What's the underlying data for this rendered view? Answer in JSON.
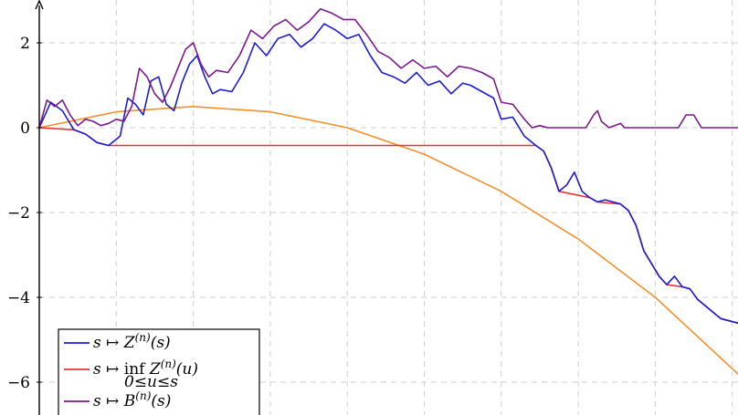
{
  "chart_data": {
    "type": "line",
    "title": "",
    "xlabel": "",
    "ylabel": "",
    "xlim": [
      0,
      9.1
    ],
    "ylim": [
      -6.7,
      2.9
    ],
    "x_gridlines": [
      0,
      1,
      2,
      3,
      4,
      5,
      6,
      7,
      8,
      9
    ],
    "y_ticks": [
      2,
      0,
      -2,
      -4,
      -6
    ],
    "y_tick_labels": [
      "2",
      "0",
      "−2",
      "−4",
      "−6"
    ],
    "grid": true,
    "legend_position": "bottom-left",
    "series": [
      {
        "name": "s ↦ Z(n)(s)",
        "legend_parts": {
          "prefix": "s ↦ Z",
          "sup": "(n)",
          "suffix": "(s)"
        },
        "color": "#1c1cd6",
        "points": [
          [
            0,
            0
          ],
          [
            0.15,
            0.6
          ],
          [
            0.3,
            0.4
          ],
          [
            0.45,
            -0.05
          ],
          [
            0.6,
            -0.15
          ],
          [
            0.75,
            -0.35
          ],
          [
            0.9,
            -0.42
          ],
          [
            1.05,
            -0.2
          ],
          [
            1.15,
            0.7
          ],
          [
            1.25,
            0.55
          ],
          [
            1.35,
            0.3
          ],
          [
            1.45,
            1.1
          ],
          [
            1.55,
            1.2
          ],
          [
            1.65,
            0.55
          ],
          [
            1.75,
            0.4
          ],
          [
            1.85,
            1.05
          ],
          [
            1.95,
            1.5
          ],
          [
            2.05,
            1.7
          ],
          [
            2.15,
            1.2
          ],
          [
            2.25,
            0.8
          ],
          [
            2.35,
            0.9
          ],
          [
            2.5,
            0.85
          ],
          [
            2.65,
            1.3
          ],
          [
            2.8,
            2.0
          ],
          [
            2.95,
            1.7
          ],
          [
            3.1,
            2.1
          ],
          [
            3.25,
            2.2
          ],
          [
            3.4,
            1.9
          ],
          [
            3.55,
            2.1
          ],
          [
            3.7,
            2.45
          ],
          [
            3.85,
            2.3
          ],
          [
            4.0,
            2.1
          ],
          [
            4.15,
            2.2
          ],
          [
            4.3,
            1.7
          ],
          [
            4.45,
            1.3
          ],
          [
            4.6,
            1.2
          ],
          [
            4.75,
            1.05
          ],
          [
            4.9,
            1.3
          ],
          [
            5.05,
            1.0
          ],
          [
            5.2,
            1.1
          ],
          [
            5.35,
            0.8
          ],
          [
            5.5,
            1.05
          ],
          [
            5.6,
            1.0
          ],
          [
            5.75,
            0.85
          ],
          [
            5.9,
            0.7
          ],
          [
            6.0,
            0.2
          ],
          [
            6.15,
            0.25
          ],
          [
            6.3,
            -0.2
          ],
          [
            6.45,
            -0.42
          ],
          [
            6.55,
            -0.55
          ],
          [
            6.65,
            -0.95
          ],
          [
            6.75,
            -1.5
          ],
          [
            6.85,
            -1.35
          ],
          [
            6.95,
            -1.05
          ],
          [
            7.05,
            -1.5
          ],
          [
            7.15,
            -1.65
          ],
          [
            7.25,
            -1.75
          ],
          [
            7.35,
            -1.7
          ],
          [
            7.45,
            -1.75
          ],
          [
            7.55,
            -1.8
          ],
          [
            7.65,
            -1.95
          ],
          [
            7.75,
            -2.3
          ],
          [
            7.85,
            -2.9
          ],
          [
            7.95,
            -3.2
          ],
          [
            8.05,
            -3.5
          ],
          [
            8.15,
            -3.7
          ],
          [
            8.25,
            -3.5
          ],
          [
            8.35,
            -3.75
          ],
          [
            8.45,
            -3.8
          ],
          [
            8.55,
            -4.05
          ],
          [
            8.65,
            -4.2
          ],
          [
            8.75,
            -4.35
          ],
          [
            8.85,
            -4.5
          ],
          [
            9.1,
            -4.62
          ]
        ]
      },
      {
        "name": "s ↦ inf Z(n)(u) over 0≤u≤s",
        "legend_parts": {
          "prefix": "s ↦",
          "op": "inf",
          "sub": "0≤u≤s",
          "body": "Z",
          "sup": "(n)",
          "suffix": "(u)"
        },
        "color": "#e83333",
        "points": [
          [
            0,
            0
          ],
          [
            0.45,
            -0.05
          ],
          [
            0.6,
            -0.15
          ],
          [
            0.75,
            -0.35
          ],
          [
            0.9,
            -0.42
          ],
          [
            6.45,
            -0.42
          ],
          [
            6.55,
            -0.55
          ],
          [
            6.65,
            -0.95
          ],
          [
            6.75,
            -1.5
          ],
          [
            7.15,
            -1.65
          ],
          [
            7.25,
            -1.75
          ],
          [
            7.55,
            -1.8
          ],
          [
            7.65,
            -1.95
          ],
          [
            7.75,
            -2.3
          ],
          [
            7.85,
            -2.9
          ],
          [
            7.95,
            -3.2
          ],
          [
            8.05,
            -3.5
          ],
          [
            8.15,
            -3.7
          ],
          [
            8.35,
            -3.75
          ],
          [
            8.45,
            -3.8
          ],
          [
            8.55,
            -4.05
          ],
          [
            8.65,
            -4.2
          ],
          [
            8.75,
            -4.35
          ],
          [
            8.85,
            -4.5
          ],
          [
            9.1,
            -4.62
          ]
        ]
      },
      {
        "name": "s ↦ B(n)(s)",
        "legend_parts": {
          "prefix": "s ↦ B",
          "sup": "(n)",
          "suffix": "(s)"
        },
        "color": "#7a1a8c",
        "points": [
          [
            0,
            0
          ],
          [
            0.1,
            0.65
          ],
          [
            0.2,
            0.5
          ],
          [
            0.3,
            0.65
          ],
          [
            0.4,
            0.3
          ],
          [
            0.5,
            0.05
          ],
          [
            0.6,
            0.2
          ],
          [
            0.7,
            0.15
          ],
          [
            0.8,
            0.05
          ],
          [
            0.9,
            0.1
          ],
          [
            1.0,
            0.2
          ],
          [
            1.1,
            0.15
          ],
          [
            1.2,
            0.5
          ],
          [
            1.3,
            1.4
          ],
          [
            1.4,
            1.2
          ],
          [
            1.5,
            0.8
          ],
          [
            1.6,
            0.6
          ],
          [
            1.7,
            0.95
          ],
          [
            1.8,
            1.4
          ],
          [
            1.9,
            1.85
          ],
          [
            2.0,
            2.0
          ],
          [
            2.1,
            1.5
          ],
          [
            2.2,
            1.2
          ],
          [
            2.3,
            1.35
          ],
          [
            2.45,
            1.3
          ],
          [
            2.6,
            1.7
          ],
          [
            2.75,
            2.3
          ],
          [
            2.9,
            2.1
          ],
          [
            3.05,
            2.4
          ],
          [
            3.2,
            2.55
          ],
          [
            3.35,
            2.3
          ],
          [
            3.5,
            2.5
          ],
          [
            3.65,
            2.8
          ],
          [
            3.8,
            2.7
          ],
          [
            3.95,
            2.55
          ],
          [
            4.1,
            2.55
          ],
          [
            4.25,
            2.2
          ],
          [
            4.4,
            1.8
          ],
          [
            4.55,
            1.65
          ],
          [
            4.7,
            1.4
          ],
          [
            4.85,
            1.6
          ],
          [
            5.0,
            1.4
          ],
          [
            5.15,
            1.45
          ],
          [
            5.3,
            1.2
          ],
          [
            5.45,
            1.45
          ],
          [
            5.6,
            1.4
          ],
          [
            5.75,
            1.3
          ],
          [
            5.9,
            1.15
          ],
          [
            6.0,
            0.6
          ],
          [
            6.15,
            0.55
          ],
          [
            6.3,
            0.2
          ],
          [
            6.4,
            0
          ],
          [
            6.5,
            0.05
          ],
          [
            6.6,
            0
          ],
          [
            7.1,
            0
          ],
          [
            7.2,
            0.3
          ],
          [
            7.25,
            0.4
          ],
          [
            7.3,
            0.15
          ],
          [
            7.4,
            0
          ],
          [
            7.55,
            0.1
          ],
          [
            7.6,
            0
          ],
          [
            8.3,
            0
          ],
          [
            8.4,
            0.3
          ],
          [
            8.5,
            0.3
          ],
          [
            8.6,
            0
          ],
          [
            9.1,
            0
          ]
        ]
      },
      {
        "name": "orange curve",
        "legend": false,
        "color": "#f5902c",
        "function": "parabola",
        "points": [
          [
            0,
            0
          ],
          [
            1,
            0.375
          ],
          [
            2,
            0.5
          ],
          [
            3,
            0.375
          ],
          [
            4,
            0
          ],
          [
            5,
            -0.625
          ],
          [
            6,
            -1.5
          ],
          [
            7,
            -2.625
          ],
          [
            8,
            -4.0
          ],
          [
            9.1,
            -5.85
          ]
        ]
      }
    ]
  }
}
